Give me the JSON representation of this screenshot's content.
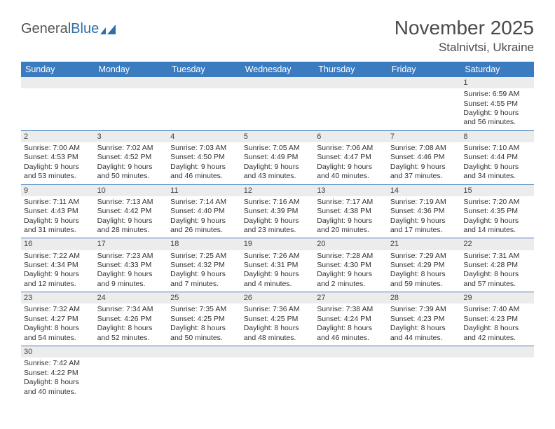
{
  "logo": {
    "text_a": "General",
    "text_b": "Blue"
  },
  "title": {
    "month": "November 2025",
    "location": "Stalnivtsi, Ukraine"
  },
  "colors": {
    "header_bg": "#3b7bbf",
    "header_fg": "#ffffff",
    "daynum_bg": "#ececec",
    "row_border": "#3b7bbf",
    "text": "#333333",
    "title_color": "#4a4a4a"
  },
  "weekdays": [
    "Sunday",
    "Monday",
    "Tuesday",
    "Wednesday",
    "Thursday",
    "Friday",
    "Saturday"
  ],
  "first_weekday_index": 6,
  "days": [
    {
      "n": 1,
      "sunrise": "6:59 AM",
      "sunset": "4:55 PM",
      "dl_h": 9,
      "dl_m": 56
    },
    {
      "n": 2,
      "sunrise": "7:00 AM",
      "sunset": "4:53 PM",
      "dl_h": 9,
      "dl_m": 53
    },
    {
      "n": 3,
      "sunrise": "7:02 AM",
      "sunset": "4:52 PM",
      "dl_h": 9,
      "dl_m": 50
    },
    {
      "n": 4,
      "sunrise": "7:03 AM",
      "sunset": "4:50 PM",
      "dl_h": 9,
      "dl_m": 46
    },
    {
      "n": 5,
      "sunrise": "7:05 AM",
      "sunset": "4:49 PM",
      "dl_h": 9,
      "dl_m": 43
    },
    {
      "n": 6,
      "sunrise": "7:06 AM",
      "sunset": "4:47 PM",
      "dl_h": 9,
      "dl_m": 40
    },
    {
      "n": 7,
      "sunrise": "7:08 AM",
      "sunset": "4:46 PM",
      "dl_h": 9,
      "dl_m": 37
    },
    {
      "n": 8,
      "sunrise": "7:10 AM",
      "sunset": "4:44 PM",
      "dl_h": 9,
      "dl_m": 34
    },
    {
      "n": 9,
      "sunrise": "7:11 AM",
      "sunset": "4:43 PM",
      "dl_h": 9,
      "dl_m": 31
    },
    {
      "n": 10,
      "sunrise": "7:13 AM",
      "sunset": "4:42 PM",
      "dl_h": 9,
      "dl_m": 28
    },
    {
      "n": 11,
      "sunrise": "7:14 AM",
      "sunset": "4:40 PM",
      "dl_h": 9,
      "dl_m": 26
    },
    {
      "n": 12,
      "sunrise": "7:16 AM",
      "sunset": "4:39 PM",
      "dl_h": 9,
      "dl_m": 23
    },
    {
      "n": 13,
      "sunrise": "7:17 AM",
      "sunset": "4:38 PM",
      "dl_h": 9,
      "dl_m": 20
    },
    {
      "n": 14,
      "sunrise": "7:19 AM",
      "sunset": "4:36 PM",
      "dl_h": 9,
      "dl_m": 17
    },
    {
      "n": 15,
      "sunrise": "7:20 AM",
      "sunset": "4:35 PM",
      "dl_h": 9,
      "dl_m": 14
    },
    {
      "n": 16,
      "sunrise": "7:22 AM",
      "sunset": "4:34 PM",
      "dl_h": 9,
      "dl_m": 12
    },
    {
      "n": 17,
      "sunrise": "7:23 AM",
      "sunset": "4:33 PM",
      "dl_h": 9,
      "dl_m": 9
    },
    {
      "n": 18,
      "sunrise": "7:25 AM",
      "sunset": "4:32 PM",
      "dl_h": 9,
      "dl_m": 7
    },
    {
      "n": 19,
      "sunrise": "7:26 AM",
      "sunset": "4:31 PM",
      "dl_h": 9,
      "dl_m": 4
    },
    {
      "n": 20,
      "sunrise": "7:28 AM",
      "sunset": "4:30 PM",
      "dl_h": 9,
      "dl_m": 2
    },
    {
      "n": 21,
      "sunrise": "7:29 AM",
      "sunset": "4:29 PM",
      "dl_h": 8,
      "dl_m": 59
    },
    {
      "n": 22,
      "sunrise": "7:31 AM",
      "sunset": "4:28 PM",
      "dl_h": 8,
      "dl_m": 57
    },
    {
      "n": 23,
      "sunrise": "7:32 AM",
      "sunset": "4:27 PM",
      "dl_h": 8,
      "dl_m": 54
    },
    {
      "n": 24,
      "sunrise": "7:34 AM",
      "sunset": "4:26 PM",
      "dl_h": 8,
      "dl_m": 52
    },
    {
      "n": 25,
      "sunrise": "7:35 AM",
      "sunset": "4:25 PM",
      "dl_h": 8,
      "dl_m": 50
    },
    {
      "n": 26,
      "sunrise": "7:36 AM",
      "sunset": "4:25 PM",
      "dl_h": 8,
      "dl_m": 48
    },
    {
      "n": 27,
      "sunrise": "7:38 AM",
      "sunset": "4:24 PM",
      "dl_h": 8,
      "dl_m": 46
    },
    {
      "n": 28,
      "sunrise": "7:39 AM",
      "sunset": "4:23 PM",
      "dl_h": 8,
      "dl_m": 44
    },
    {
      "n": 29,
      "sunrise": "7:40 AM",
      "sunset": "4:23 PM",
      "dl_h": 8,
      "dl_m": 42
    },
    {
      "n": 30,
      "sunrise": "7:42 AM",
      "sunset": "4:22 PM",
      "dl_h": 8,
      "dl_m": 40
    }
  ],
  "labels": {
    "sunrise": "Sunrise:",
    "sunset": "Sunset:",
    "daylight": "Daylight:",
    "hours_word": "hours",
    "and_word": "and",
    "minutes_word": "minutes."
  }
}
